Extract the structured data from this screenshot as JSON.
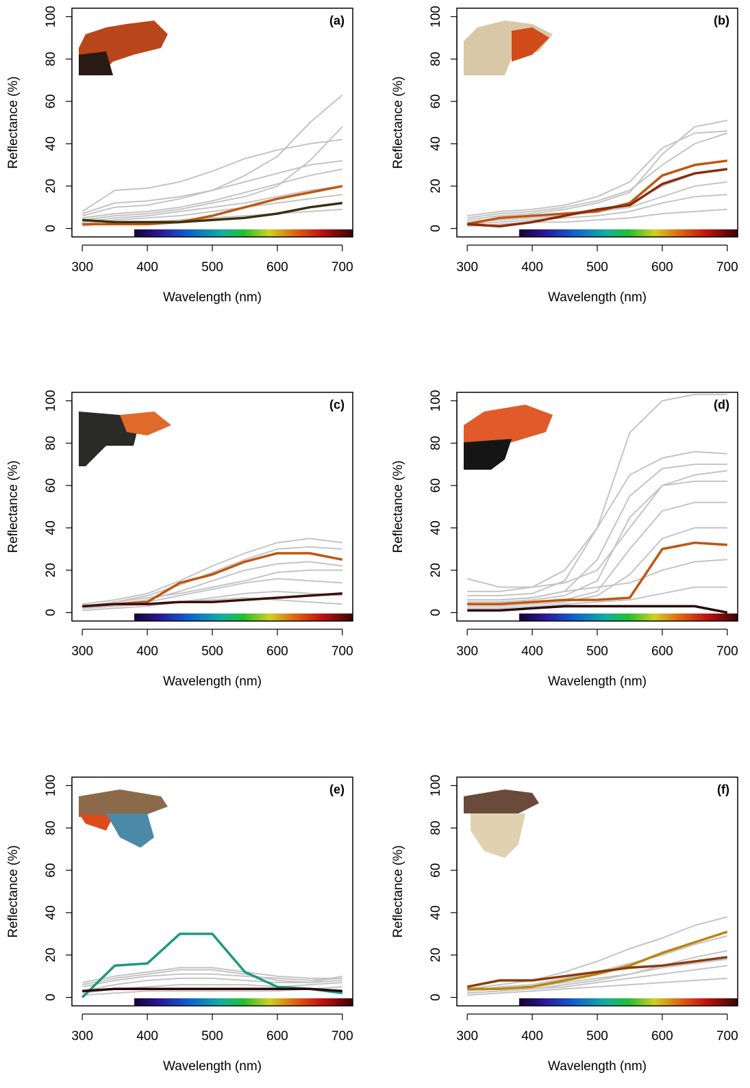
{
  "chart_data": [
    {
      "type": "line",
      "title": "(a)",
      "xlabel": "Wavelength (nm)",
      "ylabel": "Reflectance (%)",
      "x": [
        300,
        350,
        400,
        450,
        500,
        550,
        600,
        650,
        700
      ],
      "xlim": [
        284,
        716
      ],
      "ylim": [
        -4,
        104
      ],
      "xticks": [
        300,
        400,
        500,
        600,
        700
      ],
      "yticks": [
        0,
        20,
        40,
        60,
        80,
        100
      ],
      "series": [
        {
          "color": "#c4c4c4",
          "values": [
            5,
            7,
            8,
            10,
            13,
            17,
            21,
            25,
            28
          ]
        },
        {
          "color": "#c4c4c4",
          "values": [
            7,
            12,
            13,
            15,
            18,
            22,
            26,
            30,
            32
          ]
        },
        {
          "color": "#c4c4c4",
          "values": [
            8,
            18,
            19,
            22,
            27,
            33,
            37,
            40,
            42
          ]
        },
        {
          "color": "#c4c4c4",
          "values": [
            3,
            5,
            6,
            8,
            10,
            12,
            15,
            18,
            20
          ]
        },
        {
          "color": "#c4c4c4",
          "values": [
            2,
            4,
            5,
            6,
            8,
            10,
            12,
            14,
            16
          ]
        },
        {
          "color": "#c4c4c4",
          "values": [
            6,
            10,
            11,
            14,
            18,
            25,
            34,
            50,
            63
          ]
        },
        {
          "color": "#c4c4c4",
          "values": [
            4,
            6,
            7,
            9,
            12,
            15,
            20,
            32,
            48
          ]
        },
        {
          "color": "#c4c4c4",
          "values": [
            1,
            3,
            3,
            4,
            5,
            6,
            7,
            8,
            9
          ]
        },
        {
          "color": "#c0550f",
          "values": [
            2,
            2,
            2,
            3,
            6,
            10,
            14,
            17,
            20
          ]
        },
        {
          "color": "#3a3010",
          "values": [
            4,
            3,
            3,
            3,
            4,
            5,
            7,
            10,
            12
          ]
        }
      ]
    },
    {
      "type": "line",
      "title": "(b)",
      "xlabel": "Wavelength (nm)",
      "ylabel": "Reflectance (%)",
      "x": [
        300,
        350,
        400,
        450,
        500,
        550,
        600,
        650,
        700
      ],
      "xlim": [
        284,
        716
      ],
      "ylim": [
        -4,
        104
      ],
      "xticks": [
        300,
        400,
        500,
        600,
        700
      ],
      "yticks": [
        0,
        20,
        40,
        60,
        80,
        100
      ],
      "series": [
        {
          "color": "#c4c4c4",
          "values": [
            5,
            7,
            8,
            10,
            13,
            18,
            30,
            40,
            45
          ]
        },
        {
          "color": "#c4c4c4",
          "values": [
            4,
            6,
            7,
            9,
            12,
            17,
            35,
            48,
            51
          ]
        },
        {
          "color": "#c4c4c4",
          "values": [
            3,
            5,
            6,
            7,
            9,
            12,
            20,
            26,
            28
          ]
        },
        {
          "color": "#c4c4c4",
          "values": [
            2,
            3,
            4,
            5,
            6,
            8,
            12,
            15,
            16
          ]
        },
        {
          "color": "#c4c4c4",
          "values": [
            1,
            2,
            3,
            3,
            4,
            5,
            7,
            8,
            9
          ]
        },
        {
          "color": "#c4c4c4",
          "values": [
            6,
            8,
            9,
            11,
            15,
            22,
            38,
            45,
            46
          ]
        },
        {
          "color": "#c4c4c4",
          "values": [
            3,
            4,
            5,
            6,
            8,
            10,
            15,
            20,
            22
          ]
        },
        {
          "color": "#c0550f",
          "values": [
            2,
            5,
            6,
            7,
            8,
            12,
            25,
            30,
            32
          ]
        },
        {
          "color": "#8b2a0a",
          "values": [
            2,
            1,
            3,
            6,
            9,
            11,
            21,
            26,
            28
          ]
        }
      ]
    },
    {
      "type": "line",
      "title": "(c)",
      "xlabel": "Wavelength (nm)",
      "ylabel": "Reflectance (%)",
      "x": [
        300,
        350,
        400,
        450,
        500,
        550,
        600,
        650,
        700
      ],
      "xlim": [
        284,
        716
      ],
      "ylim": [
        -4,
        104
      ],
      "xticks": [
        300,
        400,
        500,
        600,
        700
      ],
      "yticks": [
        0,
        20,
        40,
        60,
        80,
        100
      ],
      "series": [
        {
          "color": "#c4c4c4",
          "values": [
            4,
            6,
            9,
            15,
            22,
            28,
            33,
            35,
            33
          ]
        },
        {
          "color": "#c4c4c4",
          "values": [
            3,
            5,
            8,
            13,
            19,
            25,
            30,
            31,
            30
          ]
        },
        {
          "color": "#c4c4c4",
          "values": [
            2,
            4,
            6,
            10,
            15,
            20,
            23,
            24,
            22
          ]
        },
        {
          "color": "#c4c4c4",
          "values": [
            2,
            3,
            5,
            8,
            11,
            14,
            16,
            15,
            14
          ]
        },
        {
          "color": "#c4c4c4",
          "values": [
            1,
            2,
            3,
            5,
            7,
            9,
            10,
            9,
            8
          ]
        },
        {
          "color": "#c4c4c4",
          "values": [
            3,
            5,
            7,
            9,
            12,
            15,
            19,
            20,
            20
          ]
        },
        {
          "color": "#c4c4c4",
          "values": [
            2,
            3,
            4,
            5,
            6,
            7,
            6,
            5,
            4
          ]
        },
        {
          "color": "#c0550f",
          "values": [
            3,
            4,
            5,
            14,
            18,
            24,
            28,
            28,
            25
          ]
        },
        {
          "color": "#3a0f0a",
          "values": [
            3,
            4,
            4,
            5,
            5,
            6,
            7,
            8,
            9
          ]
        }
      ]
    },
    {
      "type": "line",
      "title": "(d)",
      "xlabel": "Wavelength (nm)",
      "ylabel": "Reflectance (%)",
      "x": [
        300,
        350,
        400,
        450,
        500,
        550,
        600,
        650,
        700
      ],
      "xlim": [
        284,
        716
      ],
      "ylim": [
        -4,
        104
      ],
      "xticks": [
        300,
        400,
        500,
        600,
        700
      ],
      "yticks": [
        0,
        20,
        40,
        60,
        80,
        100
      ],
      "series": [
        {
          "color": "#c4c4c4",
          "values": [
            8,
            8,
            9,
            15,
            40,
            85,
            100,
            103,
            103
          ]
        },
        {
          "color": "#c4c4c4",
          "values": [
            10,
            10,
            12,
            20,
            40,
            65,
            73,
            76,
            75
          ]
        },
        {
          "color": "#c4c4c4",
          "values": [
            6,
            6,
            7,
            10,
            25,
            55,
            68,
            70,
            70
          ]
        },
        {
          "color": "#c4c4c4",
          "values": [
            5,
            5,
            6,
            8,
            15,
            45,
            60,
            62,
            62
          ]
        },
        {
          "color": "#c4c4c4",
          "values": [
            4,
            4,
            5,
            6,
            10,
            30,
            48,
            52,
            52
          ]
        },
        {
          "color": "#c4c4c4",
          "values": [
            3,
            3,
            4,
            5,
            8,
            18,
            35,
            40,
            40
          ]
        },
        {
          "color": "#c4c4c4",
          "values": [
            6,
            6,
            7,
            10,
            12,
            14,
            20,
            24,
            25
          ]
        },
        {
          "color": "#c4c4c4",
          "values": [
            2,
            2,
            3,
            4,
            5,
            6,
            9,
            12,
            12
          ]
        },
        {
          "color": "#c4c4c4",
          "values": [
            16,
            12,
            12,
            14,
            20,
            40,
            60,
            65,
            67
          ]
        },
        {
          "color": "#c0550f",
          "values": [
            4,
            4,
            5,
            6,
            6,
            7,
            30,
            33,
            32
          ]
        },
        {
          "color": "#2a0505",
          "values": [
            1,
            1,
            2,
            3,
            3,
            3,
            3,
            3,
            0
          ]
        }
      ]
    },
    {
      "type": "line",
      "title": "(e)",
      "xlabel": "Wavelength (nm)",
      "ylabel": "Reflectance (%)",
      "x": [
        300,
        350,
        400,
        450,
        500,
        550,
        600,
        650,
        700
      ],
      "xlim": [
        284,
        716
      ],
      "ylim": [
        -4,
        104
      ],
      "xticks": [
        300,
        400,
        500,
        600,
        700
      ],
      "yticks": [
        0,
        20,
        40,
        60,
        80,
        100
      ],
      "series": [
        {
          "color": "#c4c4c4",
          "values": [
            7,
            10,
            12,
            14,
            14,
            12,
            10,
            9,
            9
          ]
        },
        {
          "color": "#c4c4c4",
          "values": [
            5,
            8,
            10,
            11,
            11,
            10,
            9,
            8,
            9
          ]
        },
        {
          "color": "#c4c4c4",
          "values": [
            3,
            6,
            8,
            9,
            9,
            8,
            7,
            7,
            8
          ]
        },
        {
          "color": "#c4c4c4",
          "values": [
            2,
            4,
            5,
            6,
            6,
            6,
            5,
            6,
            7
          ]
        },
        {
          "color": "#c4c4c4",
          "values": [
            1,
            2,
            3,
            3,
            3,
            3,
            3,
            4,
            5
          ]
        },
        {
          "color": "#c4c4c4",
          "values": [
            6,
            9,
            11,
            13,
            13,
            11,
            8,
            7,
            10
          ]
        },
        {
          "color": "#1a9a80",
          "values": [
            0,
            15,
            16,
            30,
            30,
            12,
            5,
            4,
            2
          ]
        },
        {
          "color": "#2a0505",
          "values": [
            3,
            4,
            4,
            4,
            4,
            4,
            4,
            4,
            3
          ]
        }
      ]
    },
    {
      "type": "line",
      "title": "(f)",
      "xlabel": "Wavelength (nm)",
      "ylabel": "Reflectance (%)",
      "x": [
        300,
        350,
        400,
        450,
        500,
        550,
        600,
        650,
        700
      ],
      "xlim": [
        284,
        716
      ],
      "ylim": [
        -4,
        104
      ],
      "xticks": [
        300,
        400,
        500,
        600,
        700
      ],
      "yticks": [
        0,
        20,
        40,
        60,
        80,
        100
      ],
      "series": [
        {
          "color": "#c4c4c4",
          "values": [
            4,
            6,
            8,
            12,
            17,
            23,
            28,
            34,
            38
          ]
        },
        {
          "color": "#c4c4c4",
          "values": [
            3,
            5,
            6,
            9,
            12,
            16,
            20,
            25,
            29
          ]
        },
        {
          "color": "#c4c4c4",
          "values": [
            3,
            4,
            5,
            7,
            9,
            11,
            14,
            16,
            18
          ]
        },
        {
          "color": "#c4c4c4",
          "values": [
            2,
            3,
            4,
            5,
            7,
            9,
            11,
            13,
            15
          ]
        },
        {
          "color": "#c4c4c4",
          "values": [
            1,
            2,
            3,
            4,
            5,
            6,
            7,
            8,
            9
          ]
        },
        {
          "color": "#c4c4c4",
          "values": [
            2,
            3,
            4,
            6,
            8,
            11,
            15,
            19,
            22
          ]
        },
        {
          "color": "#b8860b",
          "values": [
            4,
            4,
            5,
            8,
            11,
            15,
            21,
            26,
            31
          ]
        },
        {
          "color": "#8b3a0a",
          "values": [
            5,
            8,
            8,
            10,
            12,
            14,
            15,
            17,
            19
          ]
        }
      ]
    }
  ]
}
